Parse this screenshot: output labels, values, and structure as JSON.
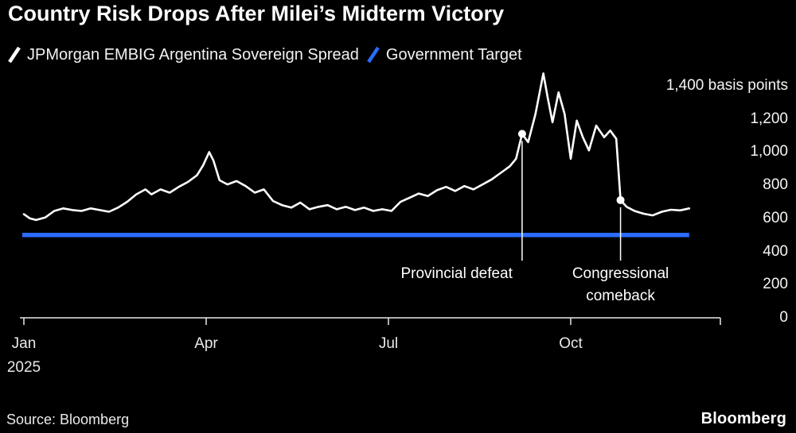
{
  "title": "Country Risk Drops After Milei’s Midterm Victory",
  "legend": {
    "items": [
      {
        "label": "JPMorgan EMBIG Argentina Sovereign Spread",
        "color": "#ffffff"
      },
      {
        "label": "Government Target",
        "color": "#2a6cff"
      }
    ]
  },
  "source": "Source: Bloomberg",
  "logo": "Bloomberg",
  "colors": {
    "background": "#000000",
    "spread_line": "#ffffff",
    "target_line": "#2a6cff",
    "axis": "#e8e8e8"
  },
  "chart_data": {
    "type": "line",
    "title": "Country Risk Drops After Milei’s Midterm Victory",
    "ylabel": "basis points",
    "xlabel": "",
    "ylim": [
      0,
      1400
    ],
    "yticks": [
      0,
      200,
      400,
      600,
      800,
      1000,
      1200,
      1400
    ],
    "ytick_labels": [
      "0",
      "200",
      "400",
      "600",
      "800",
      "1,000",
      "1,200",
      "1,400 basis points"
    ],
    "x_unit": "months from Jan 2025",
    "xlim": [
      0,
      11.4
    ],
    "xticks": [
      {
        "pos": 0,
        "label": "Jan\n2025"
      },
      {
        "pos": 3,
        "label": "Apr"
      },
      {
        "pos": 6,
        "label": "Jul"
      },
      {
        "pos": 9,
        "label": "Oct"
      }
    ],
    "grid": false,
    "legend_position": "top-left",
    "series": [
      {
        "name": "JPMorgan EMBIG Argentina Sovereign Spread",
        "color": "#ffffff",
        "style": "line",
        "points": [
          [
            0.0,
            625
          ],
          [
            0.1,
            600
          ],
          [
            0.2,
            590
          ],
          [
            0.35,
            605
          ],
          [
            0.5,
            645
          ],
          [
            0.65,
            660
          ],
          [
            0.8,
            650
          ],
          [
            0.95,
            645
          ],
          [
            1.1,
            660
          ],
          [
            1.25,
            650
          ],
          [
            1.4,
            640
          ],
          [
            1.55,
            665
          ],
          [
            1.7,
            700
          ],
          [
            1.85,
            745
          ],
          [
            2.0,
            775
          ],
          [
            2.1,
            745
          ],
          [
            2.25,
            775
          ],
          [
            2.4,
            755
          ],
          [
            2.55,
            790
          ],
          [
            2.7,
            820
          ],
          [
            2.85,
            860
          ],
          [
            2.95,
            920
          ],
          [
            3.05,
            1000
          ],
          [
            3.12,
            950
          ],
          [
            3.22,
            830
          ],
          [
            3.35,
            805
          ],
          [
            3.5,
            825
          ],
          [
            3.65,
            795
          ],
          [
            3.8,
            755
          ],
          [
            3.95,
            775
          ],
          [
            4.1,
            705
          ],
          [
            4.25,
            680
          ],
          [
            4.4,
            665
          ],
          [
            4.55,
            695
          ],
          [
            4.7,
            655
          ],
          [
            4.85,
            670
          ],
          [
            5.0,
            680
          ],
          [
            5.15,
            655
          ],
          [
            5.3,
            670
          ],
          [
            5.45,
            650
          ],
          [
            5.6,
            665
          ],
          [
            5.75,
            645
          ],
          [
            5.9,
            655
          ],
          [
            6.05,
            645
          ],
          [
            6.2,
            700
          ],
          [
            6.35,
            725
          ],
          [
            6.5,
            750
          ],
          [
            6.65,
            735
          ],
          [
            6.8,
            770
          ],
          [
            6.95,
            790
          ],
          [
            7.1,
            765
          ],
          [
            7.25,
            795
          ],
          [
            7.4,
            775
          ],
          [
            7.55,
            805
          ],
          [
            7.7,
            835
          ],
          [
            7.85,
            875
          ],
          [
            8.0,
            915
          ],
          [
            8.1,
            960
          ],
          [
            8.2,
            1110
          ],
          [
            8.3,
            1060
          ],
          [
            8.42,
            1230
          ],
          [
            8.55,
            1475
          ],
          [
            8.62,
            1330
          ],
          [
            8.7,
            1180
          ],
          [
            8.8,
            1360
          ],
          [
            8.9,
            1230
          ],
          [
            9.0,
            960
          ],
          [
            9.1,
            1190
          ],
          [
            9.2,
            1090
          ],
          [
            9.3,
            1010
          ],
          [
            9.42,
            1160
          ],
          [
            9.55,
            1090
          ],
          [
            9.65,
            1130
          ],
          [
            9.75,
            1080
          ],
          [
            9.82,
            710
          ],
          [
            9.92,
            670
          ],
          [
            10.05,
            645
          ],
          [
            10.2,
            628
          ],
          [
            10.35,
            618
          ],
          [
            10.5,
            640
          ],
          [
            10.65,
            652
          ],
          [
            10.8,
            648
          ],
          [
            10.95,
            660
          ]
        ]
      },
      {
        "name": "Government Target",
        "color": "#2a6cff",
        "style": "hline",
        "value": 500,
        "x_start": 0,
        "x_end": 10.95
      }
    ],
    "annotations": [
      {
        "text": "Provincial defeat",
        "x": 8.2,
        "value": 1110,
        "align": "right"
      },
      {
        "text": "Congressional\ncomeback",
        "x": 9.82,
        "value": 710,
        "align": "center"
      }
    ]
  }
}
